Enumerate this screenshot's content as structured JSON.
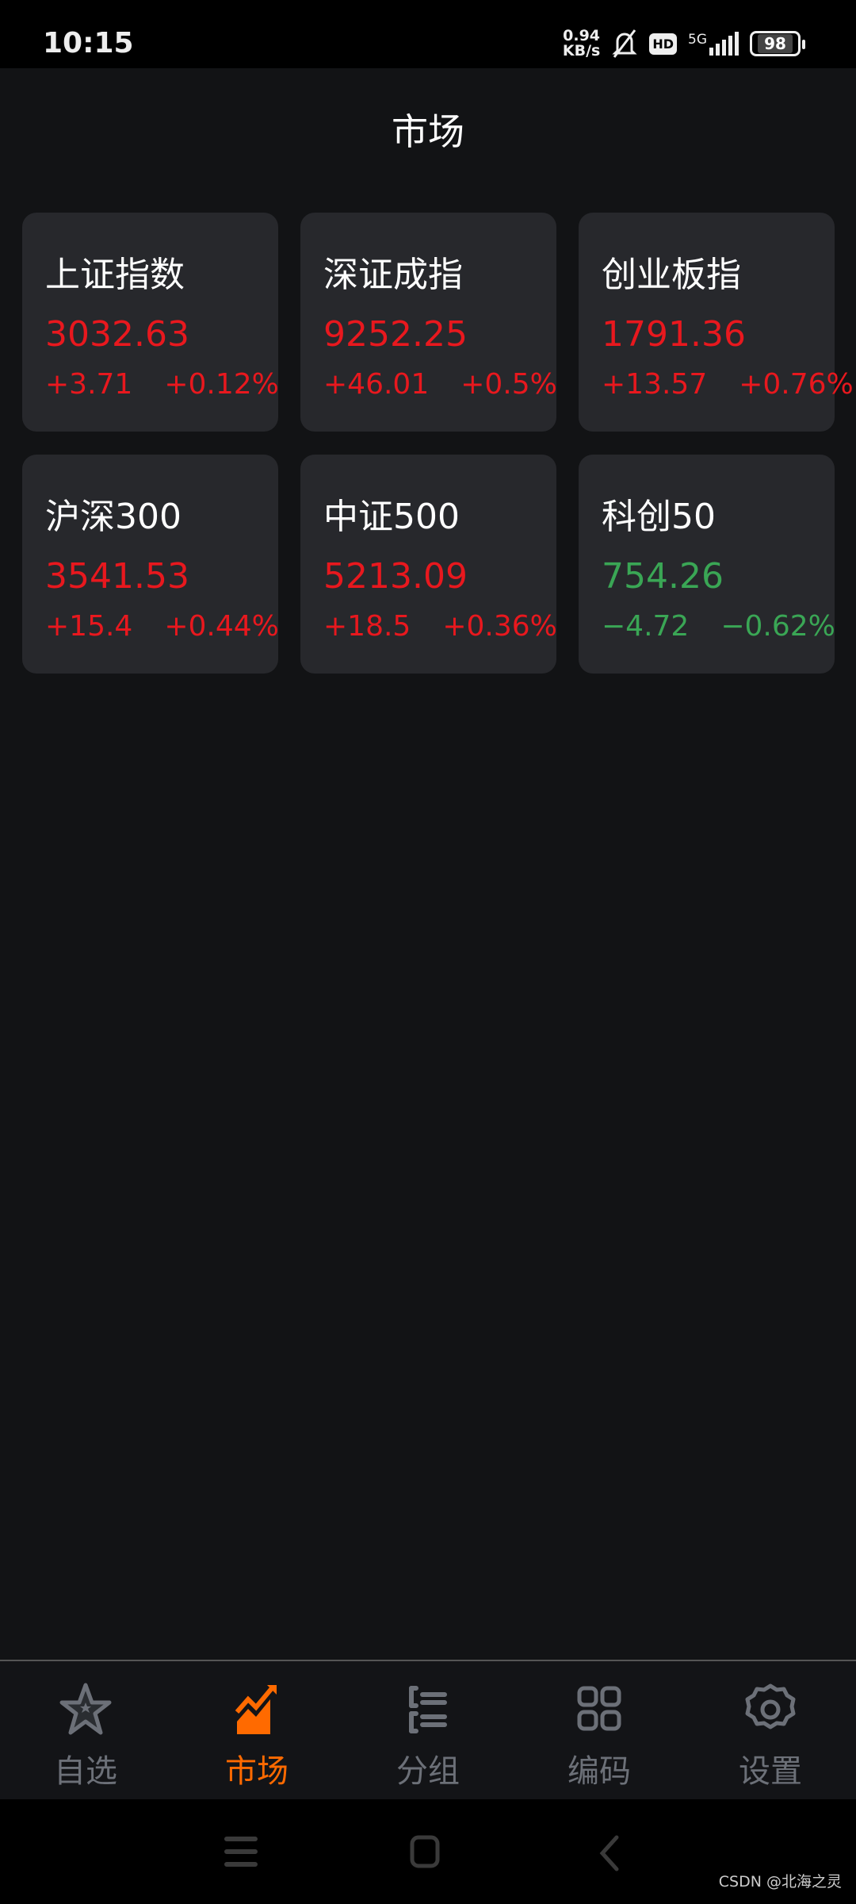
{
  "status_bar": {
    "time": "10:15",
    "net_speed_value": "0.94",
    "net_speed_unit": "KB/s",
    "network": "5G",
    "hd": "HD",
    "battery": "98"
  },
  "header": {
    "title": "市场"
  },
  "colors": {
    "up": "#e8181e",
    "down": "#3aa655",
    "accent": "#ff6a00",
    "card": "#27282c",
    "background": "#121315"
  },
  "indices": [
    {
      "name": "上证指数",
      "price": "3032.63",
      "change": "+3.71",
      "percent": "+0.12%",
      "trend": "up"
    },
    {
      "name": "深证成指",
      "price": "9252.25",
      "change": "+46.01",
      "percent": "+0.5%",
      "trend": "up"
    },
    {
      "name": "创业板指",
      "price": "1791.36",
      "change": "+13.57",
      "percent": "+0.76%",
      "trend": "up"
    },
    {
      "name": "沪深300",
      "price": "3541.53",
      "change": "+15.4",
      "percent": "+0.44%",
      "trend": "up"
    },
    {
      "name": "中证500",
      "price": "5213.09",
      "change": "+18.5",
      "percent": "+0.36%",
      "trend": "up"
    },
    {
      "name": "科创50",
      "price": "754.26",
      "change": "−4.72",
      "percent": "−0.62%",
      "trend": "down"
    }
  ],
  "bottom_nav": [
    {
      "label": "自选",
      "icon": "star-icon"
    },
    {
      "label": "市场",
      "icon": "chart-icon",
      "active": true
    },
    {
      "label": "分组",
      "icon": "list-icon"
    },
    {
      "label": "编码",
      "icon": "grid-icon"
    },
    {
      "label": "设置",
      "icon": "gear-icon"
    }
  ],
  "watermark": "CSDN @北海之灵"
}
